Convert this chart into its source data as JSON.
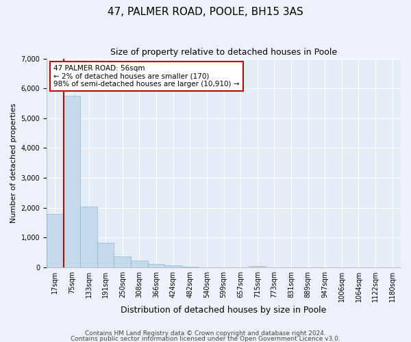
{
  "title": "47, PALMER ROAD, POOLE, BH15 3AS",
  "subtitle": "Size of property relative to detached houses in Poole",
  "xlabel": "Distribution of detached houses by size in Poole",
  "ylabel": "Number of detached properties",
  "bar_color": "#c5d9ed",
  "bar_edge_color": "#8ab4d4",
  "vline_color": "#cc0000",
  "annotation_text": "47 PALMER ROAD: 56sqm\n← 2% of detached houses are smaller (170)\n98% of semi-detached houses are larger (10,910) →",
  "annotation_box_color": "#ffffff",
  "annotation_box_edge_color": "#cc0000",
  "ylim": [
    0,
    7000
  ],
  "yticks": [
    0,
    1000,
    2000,
    3000,
    4000,
    5000,
    6000,
    7000
  ],
  "bin_labels": [
    "17sqm",
    "75sqm",
    "133sqm",
    "191sqm",
    "250sqm",
    "308sqm",
    "366sqm",
    "424sqm",
    "482sqm",
    "540sqm",
    "599sqm",
    "657sqm",
    "715sqm",
    "773sqm",
    "831sqm",
    "889sqm",
    "947sqm",
    "1006sqm",
    "1064sqm",
    "1122sqm",
    "1180sqm"
  ],
  "bar_heights": [
    1800,
    5750,
    2050,
    830,
    370,
    230,
    110,
    60,
    30,
    5,
    0,
    0,
    50,
    0,
    0,
    0,
    0,
    0,
    0,
    0,
    0
  ],
  "footer_line1": "Contains HM Land Registry data © Crown copyright and database right 2024.",
  "footer_line2": "Contains public sector information licensed under the Open Government Licence v3.0.",
  "background_color": "#eef2f8",
  "plot_background_color": "#e4ecf5",
  "grid_color": "#ffffff",
  "title_fontsize": 11,
  "subtitle_fontsize": 9,
  "xlabel_fontsize": 9,
  "ylabel_fontsize": 8,
  "tick_fontsize": 7,
  "annot_fontsize": 7.5,
  "footer_fontsize": 6.5
}
